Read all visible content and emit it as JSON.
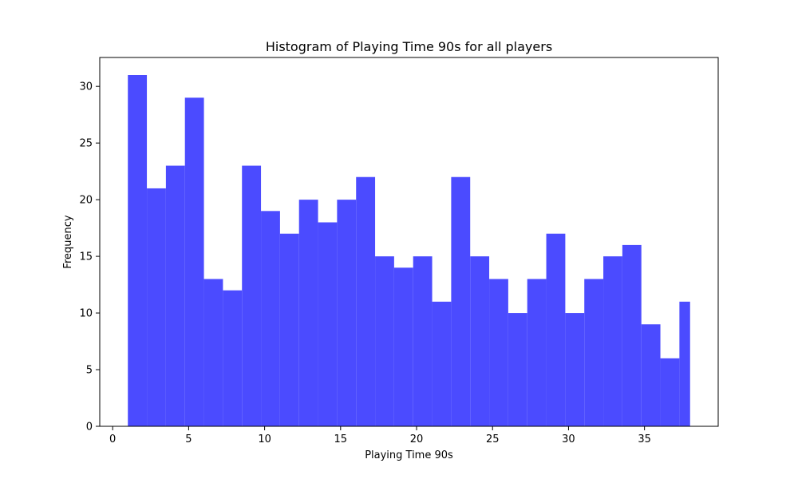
{
  "chart_data": {
    "type": "bar",
    "title": "Histogram of Playing Time 90s for all players",
    "xlabel": "Playing Time 90s",
    "ylabel": "Frequency",
    "xlim": [
      -0.85,
      39.85
    ],
    "ylim": [
      0,
      32.55
    ],
    "xticks": [
      "0",
      "5",
      "10",
      "15",
      "20",
      "25",
      "30",
      "35"
    ],
    "yticks": [
      "0",
      "5",
      "10",
      "15",
      "20",
      "25",
      "30"
    ],
    "bin_edges": [
      1.0,
      2.2516,
      3.5032,
      4.7548,
      6.0065,
      7.2581,
      8.5097,
      9.7613,
      11.0129,
      12.2645,
      13.5161,
      14.7677,
      16.0194,
      17.271,
      18.5226,
      19.7742,
      21.0258,
      22.2774,
      23.529,
      24.7806,
      26.0323,
      27.2839,
      28.5355,
      29.7871,
      31.0387,
      32.2903,
      33.5419,
      34.7935,
      36.0452,
      37.2968,
      38.0
    ],
    "values": [
      31,
      21,
      23,
      29,
      13,
      12,
      23,
      19,
      17,
      20,
      18,
      20,
      22,
      15,
      14,
      15,
      11,
      22,
      15,
      13,
      10,
      13,
      17,
      10,
      13,
      15,
      16,
      9,
      6,
      11
    ],
    "bar_color": "#4b4bff",
    "grid": false,
    "legend": "none"
  }
}
